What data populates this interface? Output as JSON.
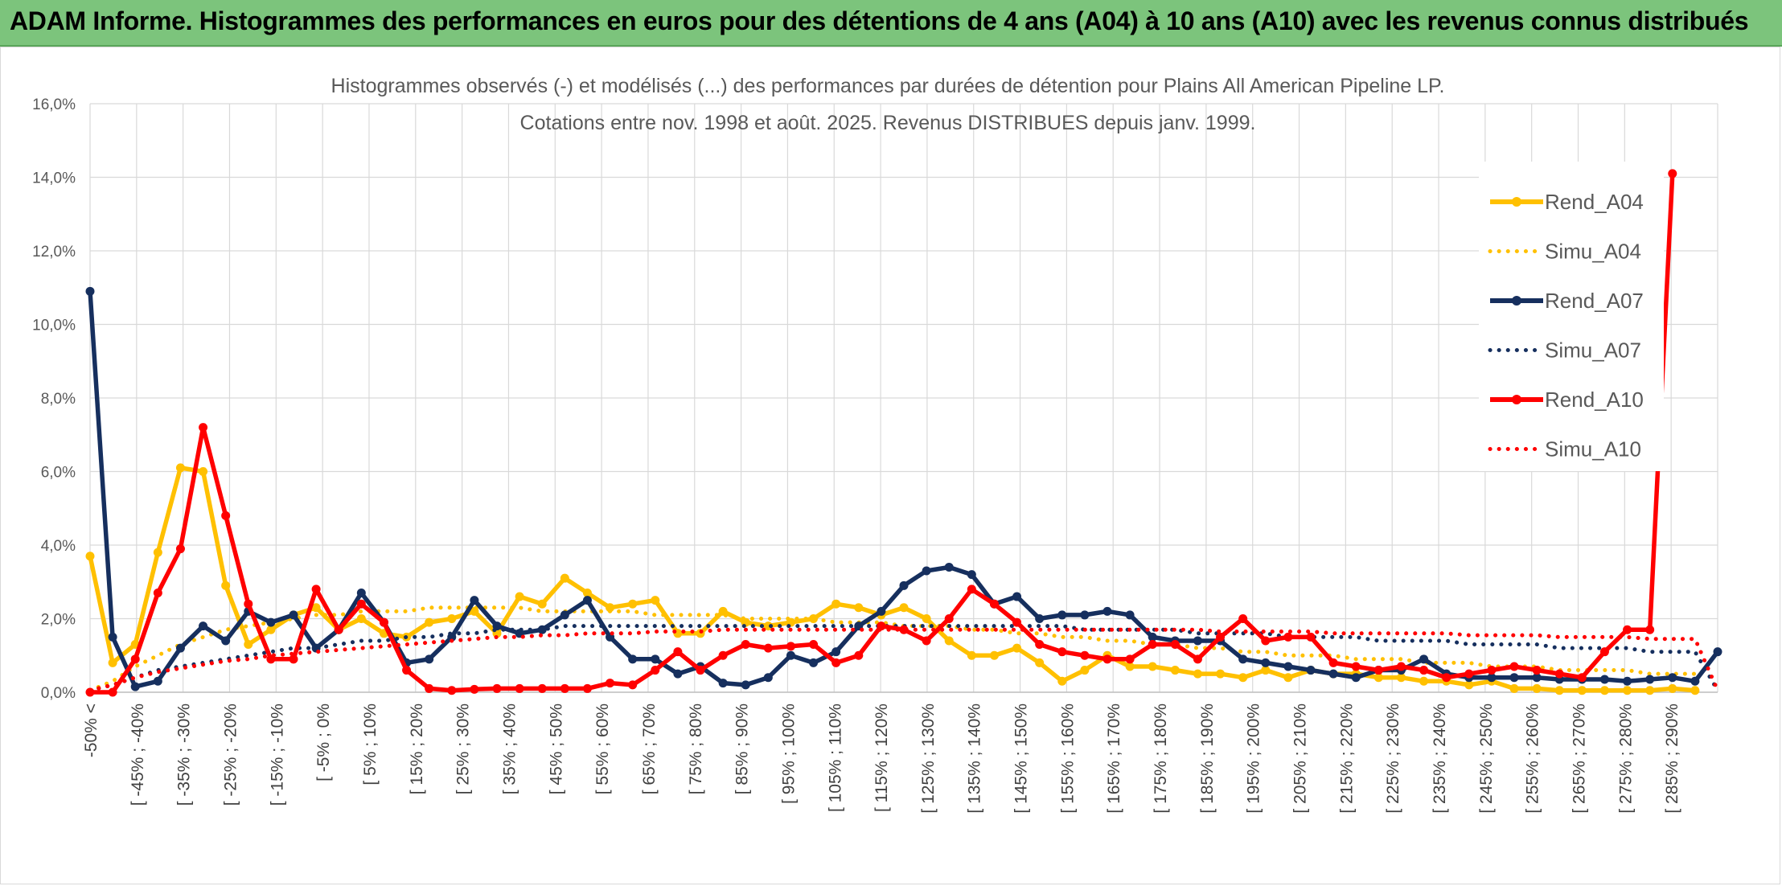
{
  "header": {
    "title": "ADAM Informe. Histogrammes des performances en euros pour des détentions de 4 ans (A04) à 10 ans (A10) avec les revenus connus distribués"
  },
  "colors": {
    "header_bg": "#7cc47c",
    "A04": "#ffc000",
    "A07": "#162f5e",
    "A10": "#ff0000",
    "grid": "#d9d9d9"
  },
  "chart_data": {
    "type": "line",
    "title": "Histogrammes observés (-) et modélisés (...) des performances par durées de détention pour Plains All American Pipeline LP.",
    "subtitle": "Cotations entre nov. 1998 et août. 2025. Revenus DISTRIBUES depuis janv. 1999.",
    "ylim": [
      0,
      16
    ],
    "yticks": [
      "0,0%",
      "2,0%",
      "4,0%",
      "6,0%",
      "8,0%",
      "10,0%",
      "12,0%",
      "14,0%",
      "16,0%"
    ],
    "grid": true,
    "legend_position": "right",
    "x_labels": [
      "-50% <",
      "[ -45% ; -40%",
      "[ -35% ; -30%",
      "[ -25% ; -20%",
      "[ -15% ; -10%",
      "[ -5% ; 0%",
      "[ 5% ; 10%",
      "[ 15% ; 20%",
      "[ 25% ; 30%",
      "[ 35% ; 40%",
      "[ 45% ; 50%",
      "[ 55% ; 60%",
      "[ 65% ; 70%",
      "[ 75% ; 80%",
      "[ 85% ; 90%",
      "[ 95% ; 100%",
      "[ 105% ; 110%",
      "[ 115% ; 120%",
      "[ 125% ; 130%",
      "[ 135% ; 140%",
      "[ 145% ; 150%",
      "[ 155% ; 160%",
      "[ 165% ; 170%",
      "[ 175% ; 180%",
      "[ 185% ; 190%",
      "[ 195% ; 200%",
      "[ 205% ; 210%",
      "[ 215% ; 220%",
      "[ 225% ; 230%",
      "[ 235% ; 240%",
      "[ 245% ; 250%",
      "[ 255% ; 260%",
      "[ 265% ; 270%",
      "[ 275% ; 280%",
      "[ 285% ; 290%"
    ],
    "series": [
      {
        "name": "Rend_A04",
        "style": "solid",
        "color": "#ffc000",
        "values": [
          3.7,
          0.8,
          1.3,
          3.8,
          6.1,
          6.0,
          2.9,
          1.3,
          1.7,
          2.1,
          2.3,
          1.7,
          2.0,
          1.6,
          1.5,
          1.9,
          2.0,
          2.2,
          1.6,
          2.6,
          2.4,
          3.1,
          2.7,
          2.3,
          2.4,
          2.5,
          1.6,
          1.6,
          2.2,
          1.9,
          1.8,
          1.9,
          2.0,
          2.4,
          2.3,
          2.1,
          2.3,
          2.0,
          1.4,
          1.0,
          1.0,
          1.2,
          0.8,
          0.3,
          0.6,
          1.0,
          0.7,
          0.7,
          0.6,
          0.5,
          0.5,
          0.4,
          0.6,
          0.4,
          0.6,
          0.5,
          0.5,
          0.4,
          0.4,
          0.3,
          0.3,
          0.2,
          0.3,
          0.1,
          0.1,
          0.05,
          0.05,
          0.05,
          0.05,
          0.05,
          0.1,
          0.05
        ]
      },
      {
        "name": "Simu_A04",
        "style": "dotted",
        "color": "#ffc000",
        "values": [
          0.05,
          0.3,
          0.7,
          1.0,
          1.3,
          1.5,
          1.7,
          1.8,
          1.9,
          2.0,
          2.1,
          2.1,
          2.2,
          2.2,
          2.2,
          2.3,
          2.3,
          2.3,
          2.3,
          2.3,
          2.2,
          2.2,
          2.2,
          2.2,
          2.2,
          2.1,
          2.1,
          2.1,
          2.1,
          2.0,
          2.0,
          2.0,
          2.0,
          1.9,
          1.9,
          1.9,
          1.8,
          1.8,
          1.8,
          1.7,
          1.7,
          1.6,
          1.6,
          1.5,
          1.5,
          1.4,
          1.4,
          1.3,
          1.3,
          1.2,
          1.2,
          1.1,
          1.1,
          1.0,
          1.0,
          1.0,
          0.9,
          0.9,
          0.9,
          0.8,
          0.8,
          0.8,
          0.7,
          0.7,
          0.7,
          0.6,
          0.6,
          0.6,
          0.6,
          0.5,
          0.5,
          0.5
        ]
      },
      {
        "name": "Rend_A07",
        "style": "solid",
        "color": "#162f5e",
        "values": [
          10.9,
          1.5,
          0.15,
          0.3,
          1.2,
          1.8,
          1.4,
          2.2,
          1.9,
          2.1,
          1.2,
          1.7,
          2.7,
          1.9,
          0.8,
          0.9,
          1.5,
          2.5,
          1.8,
          1.6,
          1.7,
          2.1,
          2.5,
          1.5,
          0.9,
          0.9,
          0.5,
          0.7,
          0.25,
          0.2,
          0.4,
          1.0,
          0.8,
          1.1,
          1.8,
          2.2,
          2.9,
          3.3,
          3.4,
          3.2,
          2.4,
          2.6,
          2.0,
          2.1,
          2.1,
          2.2,
          2.1,
          1.5,
          1.4,
          1.4,
          1.4,
          0.9,
          0.8,
          0.7,
          0.6,
          0.5,
          0.4,
          0.6,
          0.6,
          0.9,
          0.5,
          0.4,
          0.4,
          0.4,
          0.4,
          0.35,
          0.35,
          0.35,
          0.3,
          0.35,
          0.4,
          0.3,
          1.1
        ]
      },
      {
        "name": "Simu_A07",
        "style": "dotted",
        "color": "#162f5e",
        "values": [
          0.05,
          0.2,
          0.4,
          0.6,
          0.7,
          0.8,
          0.9,
          1.0,
          1.1,
          1.2,
          1.2,
          1.3,
          1.4,
          1.4,
          1.5,
          1.5,
          1.6,
          1.6,
          1.7,
          1.7,
          1.7,
          1.8,
          1.8,
          1.8,
          1.8,
          1.8,
          1.8,
          1.8,
          1.8,
          1.8,
          1.8,
          1.8,
          1.8,
          1.8,
          1.8,
          1.8,
          1.8,
          1.8,
          1.8,
          1.8,
          1.8,
          1.8,
          1.8,
          1.8,
          1.7,
          1.7,
          1.7,
          1.7,
          1.7,
          1.6,
          1.6,
          1.6,
          1.6,
          1.5,
          1.5,
          1.5,
          1.5,
          1.4,
          1.4,
          1.4,
          1.4,
          1.3,
          1.3,
          1.3,
          1.3,
          1.2,
          1.2,
          1.2,
          1.2,
          1.1,
          1.1,
          1.1,
          0.05
        ]
      },
      {
        "name": "Rend_A10",
        "style": "solid",
        "color": "#ff0000",
        "values": [
          0.0,
          0.0,
          0.9,
          2.7,
          3.9,
          7.2,
          4.8,
          2.4,
          0.9,
          0.9,
          2.8,
          1.7,
          2.4,
          1.9,
          0.6,
          0.1,
          0.05,
          0.08,
          0.1,
          0.1,
          0.1,
          0.1,
          0.1,
          0.25,
          0.2,
          0.6,
          1.1,
          0.6,
          1.0,
          1.3,
          1.2,
          1.25,
          1.3,
          0.8,
          1.0,
          1.8,
          1.7,
          1.4,
          2.0,
          2.8,
          2.4,
          1.9,
          1.3,
          1.1,
          1.0,
          0.9,
          0.9,
          1.3,
          1.3,
          0.9,
          1.5,
          2.0,
          1.4,
          1.5,
          1.5,
          0.8,
          0.7,
          0.6,
          0.7,
          0.6,
          0.4,
          0.5,
          0.6,
          0.7,
          0.6,
          0.5,
          0.4,
          1.1,
          1.7,
          1.7,
          14.1
        ]
      },
      {
        "name": "Simu_A10",
        "style": "dotted",
        "color": "#ff0000",
        "values": [
          0.05,
          0.2,
          0.4,
          0.55,
          0.65,
          0.75,
          0.85,
          0.9,
          1.0,
          1.05,
          1.1,
          1.15,
          1.2,
          1.25,
          1.3,
          1.35,
          1.4,
          1.45,
          1.5,
          1.5,
          1.55,
          1.55,
          1.6,
          1.6,
          1.6,
          1.65,
          1.65,
          1.65,
          1.7,
          1.7,
          1.7,
          1.7,
          1.7,
          1.7,
          1.7,
          1.7,
          1.7,
          1.7,
          1.7,
          1.7,
          1.7,
          1.7,
          1.7,
          1.7,
          1.7,
          1.7,
          1.7,
          1.7,
          1.7,
          1.7,
          1.65,
          1.65,
          1.65,
          1.65,
          1.65,
          1.6,
          1.6,
          1.6,
          1.6,
          1.6,
          1.6,
          1.55,
          1.55,
          1.55,
          1.55,
          1.5,
          1.5,
          1.5,
          1.5,
          1.45,
          1.45,
          1.45,
          0.05
        ]
      }
    ]
  }
}
